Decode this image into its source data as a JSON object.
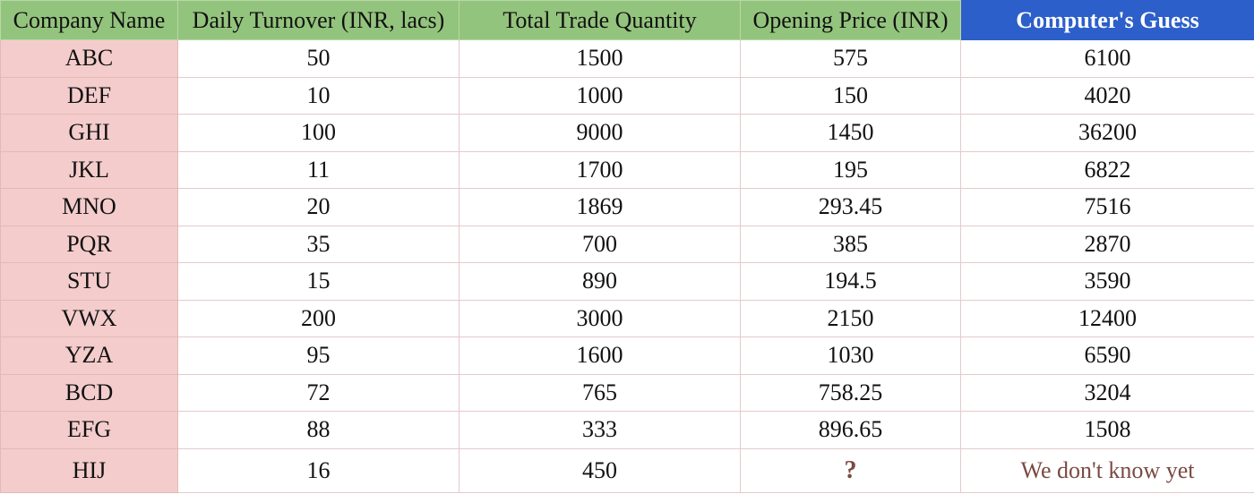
{
  "sheet": {
    "headers": {
      "company": "Company Name",
      "turnover": "Daily Turnover (INR, lacs)",
      "quantity": "Total Trade Quantity",
      "price": "Opening Price (INR)",
      "guess": "Computer's Guess"
    },
    "rows": [
      {
        "company": "ABC",
        "turnover": "50",
        "quantity": "1500",
        "price": "575",
        "guess": "6100"
      },
      {
        "company": "DEF",
        "turnover": "10",
        "quantity": "1000",
        "price": "150",
        "guess": "4020"
      },
      {
        "company": "GHI",
        "turnover": "100",
        "quantity": "9000",
        "price": "1450",
        "guess": "36200"
      },
      {
        "company": "JKL",
        "turnover": "11",
        "quantity": "1700",
        "price": "195",
        "guess": "6822"
      },
      {
        "company": "MNO",
        "turnover": "20",
        "quantity": "1869",
        "price": "293.45",
        "guess": "7516"
      },
      {
        "company": "PQR",
        "turnover": "35",
        "quantity": "700",
        "price": "385",
        "guess": "2870"
      },
      {
        "company": "STU",
        "turnover": "15",
        "quantity": "890",
        "price": "194.5",
        "guess": "3590"
      },
      {
        "company": "VWX",
        "turnover": "200",
        "quantity": "3000",
        "price": "2150",
        "guess": "12400"
      },
      {
        "company": "YZA",
        "turnover": "95",
        "quantity": "1600",
        "price": "1030",
        "guess": "6590"
      },
      {
        "company": "BCD",
        "turnover": "72",
        "quantity": "765",
        "price": "758.25",
        "guess": "3204"
      },
      {
        "company": "EFG",
        "turnover": "88",
        "quantity": "333",
        "price": "896.65",
        "guess": "1508"
      },
      {
        "company": "HIJ",
        "turnover": "16",
        "quantity": "450",
        "price": "?",
        "guess": "We don't know yet"
      }
    ]
  },
  "colors": {
    "header_green": "#93c47d",
    "header_blue": "#2c5fc9",
    "name_pink": "#f4cccc",
    "unknown_text": "#7a4a42"
  }
}
